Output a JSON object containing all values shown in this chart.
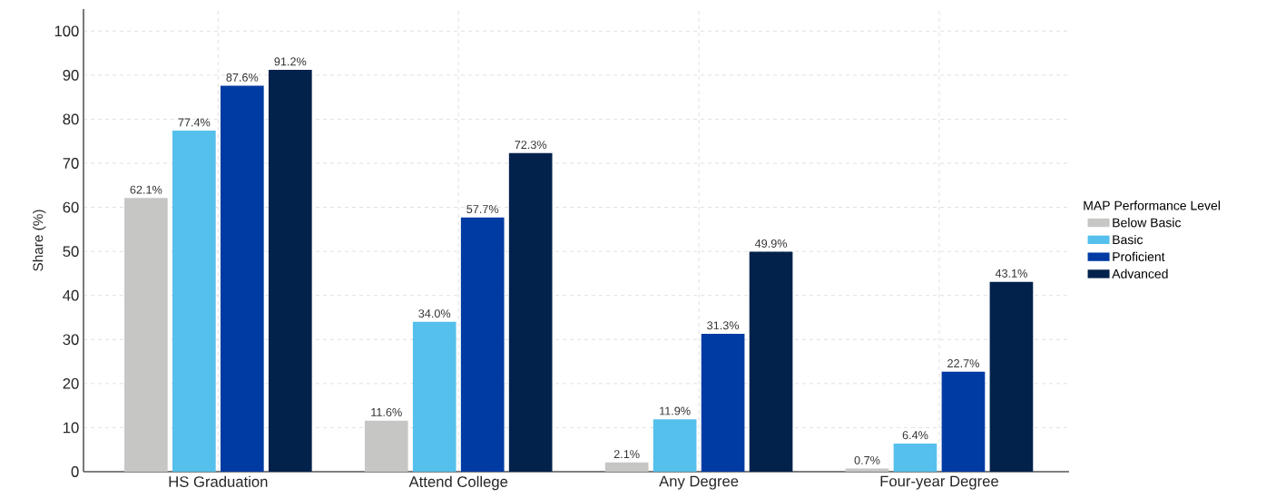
{
  "chart_data": {
    "type": "bar",
    "ylabel": "Share (%)",
    "legend_title": "MAP Performance Level",
    "categories": [
      "HS Graduation",
      "Attend College",
      "Any Degree",
      "Four-year Degree"
    ],
    "series": [
      {
        "name": "Below Basic",
        "color": "#c6c6c4",
        "values": [
          62.1,
          11.6,
          2.1,
          0.7
        ],
        "value_labels": [
          "62.1%",
          "11.6%",
          "2.1%",
          "0.7%"
        ]
      },
      {
        "name": "Basic",
        "color": "#55c0eb",
        "values": [
          77.4,
          34.0,
          11.9,
          6.4
        ],
        "value_labels": [
          "77.4%",
          "34.0%",
          "11.9%",
          "6.4%"
        ]
      },
      {
        "name": "Proficient",
        "color": "#003ba3",
        "values": [
          87.6,
          57.7,
          31.3,
          22.7
        ],
        "value_labels": [
          "87.6%",
          "57.7%",
          "31.3%",
          "22.7%"
        ]
      },
      {
        "name": "Advanced",
        "color": "#02214b",
        "values": [
          91.2,
          72.3,
          49.9,
          43.1
        ],
        "value_labels": [
          "91.2%",
          "72.3%",
          "49.9%",
          "43.1%"
        ]
      }
    ],
    "ylim": [
      0,
      105
    ],
    "yticks": [
      0,
      10,
      20,
      30,
      40,
      50,
      60,
      70,
      80,
      90,
      100
    ],
    "grid": true,
    "legend": "right"
  }
}
